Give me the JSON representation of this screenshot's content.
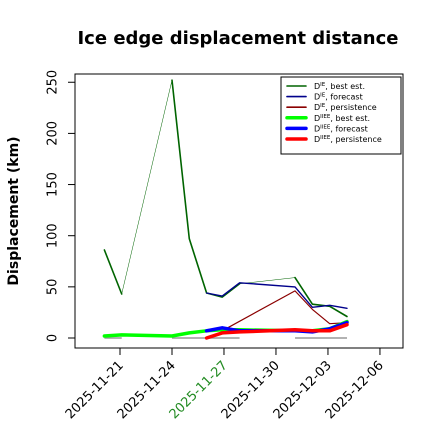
{
  "chart_data": {
    "type": "line",
    "title": "Ice edge displacement distance",
    "ylabel": "Displacement (km)",
    "xlabel": "",
    "ylim": [
      -7,
      260
    ],
    "y_ticks": [
      0,
      50,
      100,
      150,
      200,
      250
    ],
    "x_ticks": [
      {
        "label": "2025-11-21",
        "day": 21,
        "color": "#000000"
      },
      {
        "label": "2025-11-24",
        "day": 24,
        "color": "#000000"
      },
      {
        "label": "2025-11-27",
        "day": 27,
        "color": "#228b22"
      },
      {
        "label": "2025-11-30",
        "day": 30,
        "color": "#000000"
      },
      {
        "label": "2025-12-03",
        "day": 33,
        "color": "#000000"
      },
      {
        "label": "2025-12-06",
        "day": 36,
        "color": "#000000"
      }
    ],
    "legend_position": "top-right",
    "grey_segments": [
      {
        "x": [
          20.1,
          21.1
        ],
        "y": [
          0,
          0
        ]
      },
      {
        "x": [
          24.0,
          27.9
        ],
        "y": [
          0,
          0
        ]
      },
      {
        "x": [
          31.1,
          34.1
        ],
        "y": [
          0,
          0
        ]
      }
    ],
    "series": [
      {
        "name": "D^IE, best est.",
        "sup": "IE",
        "rest": ", best est.",
        "color": "#006400",
        "width": 1.6,
        "x": [
          20.1,
          21.1
        ],
        "y": [
          86,
          43
        ]
      },
      {
        "name": "D^IE, best est.",
        "sup": "",
        "rest": "",
        "color": "#006400",
        "width": 0.5,
        "legend": false,
        "x": [
          21.1,
          24.0
        ],
        "y": [
          43,
          252
        ]
      },
      {
        "name": "D^IE, best est.",
        "sup": "",
        "rest": "",
        "color": "#006400",
        "width": 1.6,
        "legend": false,
        "x": [
          24.0,
          25.0,
          26.0,
          26.9,
          27.9
        ],
        "y": [
          252,
          97,
          44,
          40,
          53
        ]
      },
      {
        "name": "D^IE, best est.",
        "sup": "",
        "rest": "",
        "color": "#006400",
        "width": 0.5,
        "legend": false,
        "x": [
          27.9,
          31.1
        ],
        "y": [
          53,
          59
        ]
      },
      {
        "name": "D^IE, best est.",
        "sup": "",
        "rest": "",
        "color": "#006400",
        "width": 1.6,
        "legend": false,
        "x": [
          31.1,
          32.1,
          33.1,
          34.1
        ],
        "y": [
          59,
          33,
          31,
          21
        ]
      },
      {
        "name": "D^IE, forecast",
        "sup": "IE",
        "rest": ", forecast",
        "color": "#00008b",
        "width": 1.4,
        "x": [
          26.0,
          26.9,
          27.9,
          31.1,
          32.1,
          33.1,
          34.1
        ],
        "y": [
          44,
          41,
          54,
          50,
          30,
          32,
          29
        ]
      },
      {
        "name": "D^IE, persistence",
        "sup": "IE",
        "rest": ", persistence",
        "color": "#8b0000",
        "width": 1.2,
        "x": [
          26.9,
          31.1,
          32.1,
          33.1,
          34.1
        ],
        "y": [
          7,
          46,
          28,
          14,
          15
        ]
      },
      {
        "name": "D^IIEE, best est.",
        "sup": "IIEE",
        "rest": ", best est.",
        "color": "#00ff00",
        "width": 3.5,
        "x": [
          20.1,
          21.1,
          24.0,
          25.0,
          26.0,
          26.9,
          27.9,
          31.1,
          32.1,
          33.1,
          34.1
        ],
        "y": [
          2,
          3,
          2,
          5,
          7,
          8,
          8,
          7,
          7,
          9,
          16
        ]
      },
      {
        "name": "D^IIEE, forecast",
        "sup": "IIEE",
        "rest": ", forecast",
        "color": "#0000ff",
        "width": 3.5,
        "x": [
          26.0,
          26.9,
          27.9,
          31.1,
          32.1,
          33.1,
          34.1
        ],
        "y": [
          7,
          10,
          7,
          7,
          6,
          9,
          15
        ]
      },
      {
        "name": "D^IIEE, persistence",
        "sup": "IIEE",
        "rest": ", persistence",
        "color": "#ff0000",
        "width": 3.5,
        "x": [
          26.0,
          26.9,
          27.9,
          31.1,
          32.1,
          33.1,
          34.1
        ],
        "y": [
          0,
          5,
          6,
          8,
          7,
          7,
          13
        ]
      }
    ]
  }
}
